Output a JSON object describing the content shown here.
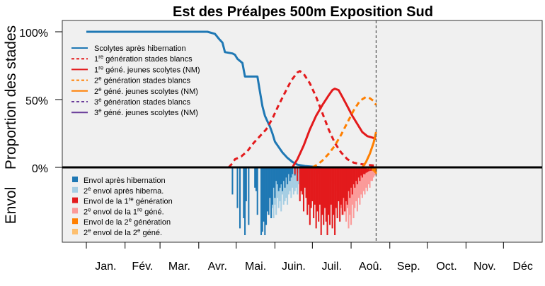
{
  "chart_data": {
    "type": "line",
    "title": "Est des Préalpes 500m Exposition Sud",
    "ylabel_top": "Proportion des stades",
    "ylabel_bottom": "Envol",
    "yticks": [
      "100%",
      "50%",
      "0%"
    ],
    "months": [
      "Jan.",
      "Fév.",
      "Mar.",
      "Avr.",
      "Mai.",
      "Juin.",
      "Juil.",
      "Aoû.",
      "Sep.",
      "Oct.",
      "Nov.",
      "Déc"
    ],
    "xlim_day": [
      1,
      365
    ],
    "ylim_top": [
      0,
      1
    ],
    "current_day": 233,
    "grid": false,
    "legend_top_position": "upper-left",
    "legend_bottom_position": "lower-left",
    "colors": {
      "plot_bg": "#f0f0f0",
      "blue": "#1f78b4",
      "light_blue": "#a6cee3",
      "red": "#e31a1c",
      "pink": "#fb9a99",
      "orange": "#ff7f00",
      "light_orange": "#fdbf6f",
      "purple": "#6a3d9a"
    },
    "legend_top": [
      {
        "label": "Scolytes après hibernation",
        "color": "#1f78b4",
        "dash": false
      },
      {
        "pre": "1",
        "sup": "re",
        "post": " génération stades blancs",
        "color": "#e31a1c",
        "dash": true
      },
      {
        "pre": "1",
        "sup": "re",
        "post": " géné. jeunes scolytes (NM)",
        "color": "#e31a1c",
        "dash": false
      },
      {
        "pre": "2",
        "sup": "e",
        "post": " génération stades blancs",
        "color": "#ff7f00",
        "dash": true
      },
      {
        "pre": "2",
        "sup": "e",
        "post": " géné. jeunes scolytes (NM)",
        "color": "#ff7f00",
        "dash": false
      },
      {
        "pre": "3",
        "sup": "e",
        "post": " génération stades blancs",
        "color": "#6a3d9a",
        "dash": true
      },
      {
        "pre": "3",
        "sup": "e",
        "post": " géné. jeunes scolytes (NM)",
        "color": "#6a3d9a",
        "dash": false
      }
    ],
    "legend_bottom": [
      {
        "label": "Envol après hibernation",
        "color": "#1f78b4"
      },
      {
        "pre": "2",
        "sup": "e",
        "post": " envol après hiberna.",
        "color": "#a6cee3"
      },
      {
        "pre": "Envol de la 1",
        "sup": "re",
        "post": " génération",
        "color": "#e31a1c"
      },
      {
        "pre": "2",
        "sup": "e",
        "post": " envol de la 1",
        "sup2": "re",
        "post2": " géné.",
        "color": "#fb9a99"
      },
      {
        "pre": "Envol de la 2",
        "sup": "e",
        "post": " génération",
        "color": "#ff7f00"
      },
      {
        "pre": "2",
        "sup": "e",
        "post": " envol de la 2",
        "sup2": "e",
        "post2": " géné.",
        "color": "#fdbf6f"
      }
    ],
    "series": [
      {
        "name": "Scolytes après hibernation",
        "color": "#1f78b4",
        "dash": false,
        "points": [
          [
            1,
            1.0
          ],
          [
            82,
            1.0
          ],
          [
            98,
            1.0
          ],
          [
            100,
            0.995
          ],
          [
            104,
            0.985
          ],
          [
            107,
            0.95
          ],
          [
            110,
            0.92
          ],
          [
            112,
            0.85
          ],
          [
            118,
            0.84
          ],
          [
            120,
            0.83
          ],
          [
            122,
            0.8
          ],
          [
            126,
            0.77
          ],
          [
            128,
            0.67
          ],
          [
            136,
            0.67
          ],
          [
            138,
            0.67
          ],
          [
            140,
            0.56
          ],
          [
            142,
            0.45
          ],
          [
            144,
            0.38
          ],
          [
            146,
            0.34
          ],
          [
            148,
            0.3
          ],
          [
            150,
            0.25
          ],
          [
            152,
            0.19
          ],
          [
            155,
            0.15
          ],
          [
            158,
            0.11
          ],
          [
            162,
            0.07
          ],
          [
            166,
            0.04
          ],
          [
            170,
            0.02
          ],
          [
            176,
            0.01
          ],
          [
            182,
            0.005
          ],
          [
            190,
            0.0
          ],
          [
            233,
            0.0
          ]
        ]
      },
      {
        "name": "1re génération stades blancs",
        "color": "#e31a1c",
        "dash": true,
        "points": [
          [
            115,
            0.0
          ],
          [
            118,
            0.03
          ],
          [
            120,
            0.06
          ],
          [
            125,
            0.08
          ],
          [
            130,
            0.12
          ],
          [
            135,
            0.18
          ],
          [
            140,
            0.23
          ],
          [
            145,
            0.28
          ],
          [
            150,
            0.36
          ],
          [
            155,
            0.46
          ],
          [
            160,
            0.55
          ],
          [
            165,
            0.64
          ],
          [
            170,
            0.7
          ],
          [
            172,
            0.71
          ],
          [
            175,
            0.69
          ],
          [
            180,
            0.62
          ],
          [
            185,
            0.52
          ],
          [
            190,
            0.4
          ],
          [
            195,
            0.28
          ],
          [
            200,
            0.18
          ],
          [
            205,
            0.11
          ],
          [
            210,
            0.06
          ],
          [
            215,
            0.035
          ],
          [
            220,
            0.025
          ],
          [
            225,
            0.02
          ],
          [
            230,
            0.015
          ],
          [
            233,
            0.01
          ]
        ]
      },
      {
        "name": "1re géné. jeunes scolytes (NM)",
        "color": "#e31a1c",
        "dash": false,
        "points": [
          [
            166,
            0.0
          ],
          [
            170,
            0.06
          ],
          [
            175,
            0.16
          ],
          [
            180,
            0.28
          ],
          [
            185,
            0.38
          ],
          [
            190,
            0.46
          ],
          [
            195,
            0.53
          ],
          [
            198,
            0.57
          ],
          [
            200,
            0.58
          ],
          [
            203,
            0.57
          ],
          [
            206,
            0.52
          ],
          [
            210,
            0.45
          ],
          [
            214,
            0.38
          ],
          [
            218,
            0.32
          ],
          [
            222,
            0.26
          ],
          [
            226,
            0.23
          ],
          [
            230,
            0.22
          ],
          [
            233,
            0.21
          ]
        ]
      },
      {
        "name": "2e génération stades blancs",
        "color": "#ff7f00",
        "dash": true,
        "points": [
          [
            182,
            0.0
          ],
          [
            186,
            0.02
          ],
          [
            190,
            0.05
          ],
          [
            195,
            0.1
          ],
          [
            200,
            0.16
          ],
          [
            205,
            0.24
          ],
          [
            210,
            0.33
          ],
          [
            215,
            0.42
          ],
          [
            220,
            0.49
          ],
          [
            225,
            0.52
          ],
          [
            228,
            0.51
          ],
          [
            231,
            0.49
          ],
          [
            233,
            0.46
          ]
        ]
      },
      {
        "name": "2e géné. jeunes scolytes (NM)",
        "color": "#ff7f00",
        "dash": false,
        "points": [
          [
            222,
            0.0
          ],
          [
            225,
            0.04
          ],
          [
            228,
            0.1
          ],
          [
            231,
            0.18
          ],
          [
            233,
            0.26
          ]
        ]
      }
    ],
    "flight_blue": [
      [
        118,
        0.4
      ],
      [
        122,
        0.6
      ],
      [
        124,
        0.9
      ],
      [
        127,
        0.75
      ],
      [
        128,
        1.0
      ],
      [
        129,
        0.5
      ],
      [
        131,
        0.85
      ],
      [
        136,
        0.3
      ],
      [
        137,
        0.35
      ],
      [
        138,
        0.7
      ],
      [
        141,
        1.0
      ],
      [
        142,
        0.95
      ],
      [
        143,
        0.8
      ],
      [
        144,
        1.0
      ],
      [
        145,
        0.85
      ],
      [
        146,
        0.65
      ],
      [
        147,
        0.7
      ],
      [
        148,
        0.45
      ],
      [
        149,
        0.75
      ],
      [
        150,
        0.55
      ],
      [
        151,
        0.3
      ],
      [
        152,
        0.45
      ],
      [
        153,
        0.2
      ],
      [
        154,
        0.25
      ],
      [
        155,
        0.35
      ],
      [
        156,
        0.3
      ],
      [
        157,
        0.25
      ],
      [
        158,
        0.35
      ],
      [
        159,
        0.2
      ],
      [
        160,
        0.3
      ],
      [
        161,
        0.15
      ],
      [
        162,
        0.25
      ],
      [
        163,
        0.1
      ],
      [
        164,
        0.2
      ],
      [
        165,
        0.15
      ],
      [
        166,
        0.1
      ],
      [
        168,
        0.12
      ],
      [
        170,
        0.08
      ],
      [
        172,
        0.1
      ],
      [
        174,
        0.05
      ],
      [
        176,
        0.06
      ],
      [
        178,
        0.04
      ],
      [
        180,
        0.05
      ],
      [
        182,
        0.03
      ],
      [
        184,
        0.04
      ],
      [
        186,
        0.03
      ],
      [
        188,
        0.02
      ],
      [
        190,
        0.02
      ]
    ],
    "flight_lightblue": [
      [
        145,
        0.05
      ],
      [
        146,
        0.2
      ],
      [
        147,
        0.15
      ],
      [
        148,
        0.4
      ],
      [
        149,
        0.3
      ],
      [
        150,
        0.6
      ],
      [
        151,
        0.75
      ],
      [
        152,
        0.55
      ],
      [
        153,
        0.7
      ],
      [
        154,
        0.45
      ],
      [
        155,
        0.6
      ],
      [
        156,
        0.5
      ],
      [
        157,
        0.65
      ],
      [
        158,
        0.4
      ],
      [
        159,
        0.55
      ],
      [
        160,
        0.5
      ],
      [
        161,
        0.45
      ],
      [
        162,
        0.55
      ],
      [
        163,
        0.4
      ],
      [
        164,
        0.35
      ],
      [
        165,
        0.45
      ],
      [
        166,
        0.3
      ],
      [
        167,
        0.4
      ],
      [
        168,
        0.35
      ],
      [
        169,
        0.3
      ],
      [
        170,
        0.4
      ],
      [
        171,
        0.25
      ],
      [
        172,
        0.35
      ],
      [
        173,
        0.3
      ],
      [
        174,
        0.2
      ],
      [
        175,
        0.3
      ],
      [
        176,
        0.2
      ],
      [
        177,
        0.25
      ],
      [
        178,
        0.18
      ],
      [
        179,
        0.22
      ],
      [
        180,
        0.15
      ],
      [
        181,
        0.18
      ],
      [
        182,
        0.12
      ],
      [
        183,
        0.1
      ],
      [
        184,
        0.14
      ],
      [
        185,
        0.1
      ],
      [
        186,
        0.08
      ],
      [
        187,
        0.1
      ],
      [
        188,
        0.06
      ],
      [
        189,
        0.08
      ],
      [
        190,
        0.05
      ]
    ],
    "flight_red": [
      [
        168,
        0.1
      ],
      [
        170,
        0.2
      ],
      [
        172,
        0.5
      ],
      [
        173,
        0.35
      ],
      [
        174,
        0.4
      ],
      [
        175,
        0.65
      ],
      [
        176,
        0.3
      ],
      [
        177,
        0.45
      ],
      [
        178,
        0.7
      ],
      [
        179,
        0.55
      ],
      [
        180,
        0.85
      ],
      [
        181,
        0.6
      ],
      [
        182,
        0.5
      ],
      [
        183,
        0.75
      ],
      [
        184,
        0.55
      ],
      [
        185,
        0.9
      ],
      [
        186,
        0.65
      ],
      [
        187,
        0.8
      ],
      [
        188,
        0.55
      ],
      [
        189,
        1.0
      ],
      [
        190,
        0.7
      ],
      [
        191,
        0.85
      ],
      [
        192,
        0.6
      ],
      [
        193,
        0.8
      ],
      [
        194,
        1.0
      ],
      [
        195,
        0.7
      ],
      [
        196,
        0.85
      ],
      [
        197,
        0.55
      ],
      [
        198,
        0.9
      ],
      [
        199,
        0.7
      ],
      [
        200,
        1.0
      ],
      [
        201,
        0.6
      ],
      [
        202,
        0.75
      ],
      [
        203,
        0.5
      ],
      [
        204,
        0.8
      ],
      [
        205,
        0.55
      ],
      [
        206,
        0.7
      ],
      [
        207,
        0.45
      ],
      [
        208,
        0.65
      ],
      [
        209,
        0.5
      ],
      [
        210,
        0.55
      ],
      [
        211,
        0.35
      ],
      [
        212,
        0.45
      ],
      [
        213,
        0.3
      ],
      [
        214,
        0.4
      ],
      [
        215,
        0.25
      ],
      [
        216,
        0.3
      ],
      [
        217,
        0.2
      ],
      [
        218,
        0.25
      ],
      [
        219,
        0.15
      ],
      [
        220,
        0.2
      ],
      [
        221,
        0.12
      ],
      [
        222,
        0.15
      ],
      [
        223,
        0.1
      ],
      [
        224,
        0.1
      ],
      [
        225,
        0.08
      ],
      [
        226,
        0.07
      ],
      [
        227,
        0.06
      ],
      [
        228,
        0.05
      ],
      [
        229,
        0.05
      ],
      [
        230,
        0.04
      ],
      [
        231,
        0.04
      ],
      [
        232,
        0.03
      ],
      [
        233,
        0.03
      ]
    ],
    "flight_pink": [
      [
        188,
        0.05
      ],
      [
        190,
        0.1
      ],
      [
        192,
        0.15
      ],
      [
        194,
        0.2
      ],
      [
        196,
        0.15
      ],
      [
        198,
        0.2
      ],
      [
        200,
        0.25
      ],
      [
        202,
        0.35
      ],
      [
        203,
        0.5
      ],
      [
        204,
        0.4
      ],
      [
        205,
        0.6
      ],
      [
        206,
        0.45
      ],
      [
        207,
        0.7
      ],
      [
        208,
        0.55
      ],
      [
        209,
        0.8
      ],
      [
        210,
        0.6
      ],
      [
        211,
        0.9
      ],
      [
        212,
        0.7
      ],
      [
        213,
        0.85
      ],
      [
        214,
        0.55
      ],
      [
        215,
        0.75
      ],
      [
        216,
        0.6
      ],
      [
        217,
        0.5
      ],
      [
        218,
        0.65
      ],
      [
        219,
        0.45
      ],
      [
        220,
        0.55
      ],
      [
        221,
        0.4
      ],
      [
        222,
        0.45
      ],
      [
        223,
        0.35
      ],
      [
        224,
        0.4
      ],
      [
        225,
        0.3
      ],
      [
        226,
        0.35
      ],
      [
        227,
        0.25
      ],
      [
        228,
        0.3
      ],
      [
        229,
        0.2
      ],
      [
        230,
        0.2
      ],
      [
        231,
        0.15
      ],
      [
        232,
        0.12
      ],
      [
        233,
        0.1
      ]
    ],
    "flight_orange": [
      [
        226,
        0.02
      ],
      [
        228,
        0.03
      ],
      [
        230,
        0.05
      ],
      [
        231,
        0.06
      ],
      [
        232,
        0.08
      ],
      [
        233,
        0.1
      ]
    ]
  }
}
